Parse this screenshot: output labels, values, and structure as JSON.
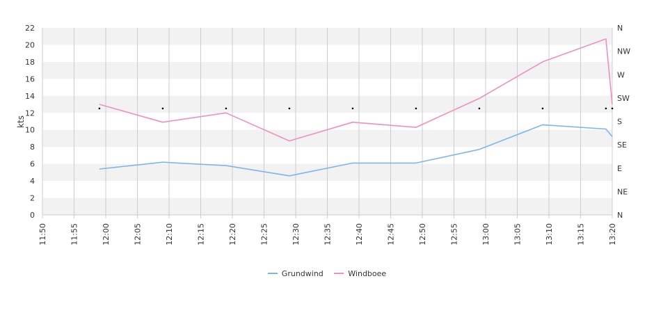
{
  "chart_data": {
    "type": "line",
    "xlabel": "",
    "ylabel": "kts",
    "x_ticks": [
      "11:50",
      "11:55",
      "12:00",
      "12:05",
      "12:10",
      "12:15",
      "12:20",
      "12:25",
      "12:30",
      "12:35",
      "12:40",
      "12:45",
      "12:50",
      "12:55",
      "13:00",
      "13:05",
      "13:10",
      "13:15",
      "13:20"
    ],
    "x_range": [
      "11:50",
      "13:20"
    ],
    "ylim": [
      0,
      22
    ],
    "y_ticks": [
      0,
      2,
      4,
      6,
      8,
      10,
      12,
      14,
      16,
      18,
      20,
      22
    ],
    "y2_ticks": [
      "N",
      "NE",
      "E",
      "SE",
      "S",
      "SW",
      "W",
      "NW",
      "N"
    ],
    "grid": true,
    "legend_position": "bottom-center",
    "series": [
      {
        "name": "Grundwind",
        "color": "#7cb5ec",
        "x": [
          "11:59",
          "12:09",
          "12:19",
          "12:29",
          "12:39",
          "12:49",
          "12:59",
          "13:09",
          "13:19",
          "13:20"
        ],
        "values": [
          5.4,
          6.2,
          5.8,
          4.6,
          6.1,
          6.1,
          7.7,
          10.6,
          10.1,
          9.2
        ]
      },
      {
        "name": "Windboee",
        "color": "#f08fbf",
        "x": [
          "11:59",
          "12:09",
          "12:19",
          "12:29",
          "12:39",
          "12:49",
          "12:59",
          "13:09",
          "13:19",
          "13:20"
        ],
        "values": [
          13.0,
          10.9,
          12.0,
          8.7,
          10.9,
          10.3,
          13.7,
          18.0,
          20.7,
          13.0
        ]
      }
    ],
    "direction_markers": {
      "x": [
        "11:59",
        "12:09",
        "12:19",
        "12:29",
        "12:39",
        "12:49",
        "12:59",
        "13:09",
        "13:19",
        "13:20"
      ],
      "direction": [
        "SW",
        "SW",
        "SW",
        "SW",
        "SW",
        "SW",
        "SW",
        "SW",
        "SW",
        "SW"
      ]
    }
  },
  "colors": {
    "band": "#f2f2f2",
    "grid_vertical": "#cccccc",
    "axis": "#cccccc",
    "marker": "#000000"
  }
}
